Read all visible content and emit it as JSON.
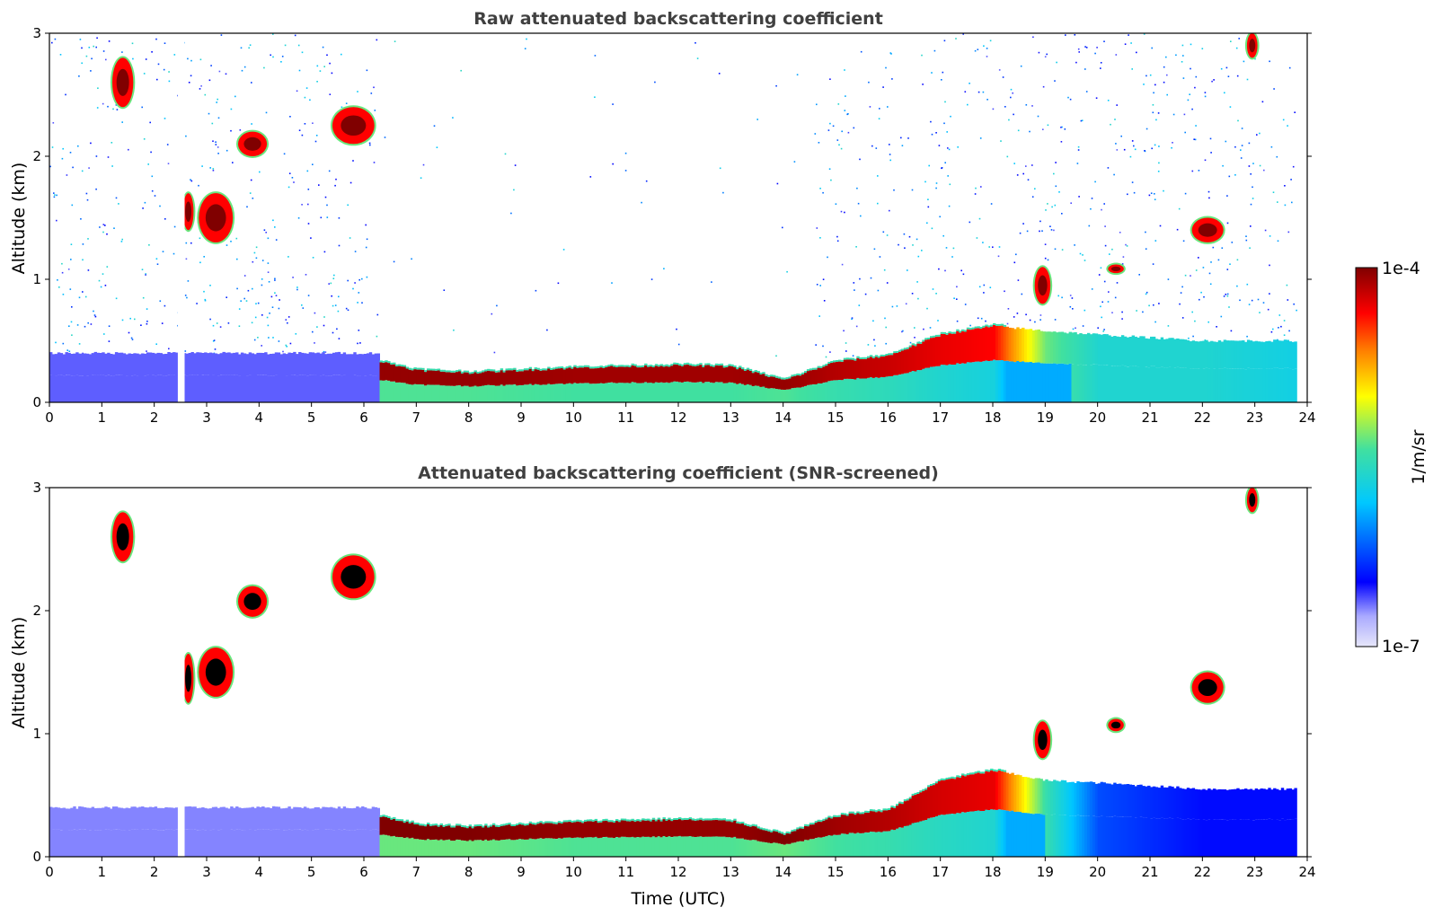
{
  "chart_data": [
    {
      "type": "heatmap",
      "title": "Raw attenuated backscattering coefficient",
      "xlabel": "",
      "ylabel": "Altitude (km)",
      "xlim": [
        0,
        24
      ],
      "ylim": [
        0,
        3
      ],
      "xticks": [
        "0",
        "1",
        "2",
        "3",
        "4",
        "5",
        "6",
        "7",
        "8",
        "9",
        "10",
        "11",
        "12",
        "13",
        "14",
        "15",
        "16",
        "17",
        "18",
        "19",
        "20",
        "21",
        "22",
        "23",
        "24"
      ],
      "yticks": [
        "0",
        "1",
        "2",
        "3"
      ],
      "noise_fill_top_km": 3.0,
      "noise_clear_window_utc": [
        6.25,
        14.6
      ],
      "boundary_layer": [
        {
          "t": 0.0,
          "top": 0.4,
          "level": 0.12
        },
        {
          "t": 6.25,
          "top": 0.4,
          "level": 0.12
        },
        {
          "t": 6.3,
          "top": 0.33,
          "level": 0.98
        },
        {
          "t": 7.0,
          "top": 0.26,
          "level": 0.98
        },
        {
          "t": 8.0,
          "top": 0.24,
          "level": 0.98
        },
        {
          "t": 10.0,
          "top": 0.28,
          "level": 0.97
        },
        {
          "t": 12.0,
          "top": 0.3,
          "level": 0.97
        },
        {
          "t": 13.0,
          "top": 0.29,
          "level": 0.97
        },
        {
          "t": 14.0,
          "top": 0.18,
          "level": 0.98
        },
        {
          "t": 15.0,
          "top": 0.33,
          "level": 0.95
        },
        {
          "t": 16.0,
          "top": 0.38,
          "level": 0.93
        },
        {
          "t": 17.0,
          "top": 0.55,
          "level": 0.9
        },
        {
          "t": 18.0,
          "top": 0.62,
          "level": 0.88
        },
        {
          "t": 19.0,
          "top": 0.58,
          "level": 0.55
        },
        {
          "t": 20.0,
          "top": 0.55,
          "level": 0.45
        },
        {
          "t": 22.0,
          "top": 0.5,
          "level": 0.45
        },
        {
          "t": 23.8,
          "top": 0.5,
          "level": 0.42
        }
      ],
      "gaps_utc": [
        [
          2.45,
          2.58
        ],
        [
          23.82,
          24.0
        ]
      ],
      "clouds": [
        {
          "t0": 1.2,
          "t1": 1.6,
          "z0": 2.4,
          "z1": 2.8
        },
        {
          "t0": 2.55,
          "t1": 2.75,
          "z0": 1.4,
          "z1": 1.7
        },
        {
          "t0": 2.85,
          "t1": 3.5,
          "z0": 1.3,
          "z1": 1.7
        },
        {
          "t0": 3.6,
          "t1": 4.15,
          "z0": 2.0,
          "z1": 2.2
        },
        {
          "t0": 5.4,
          "t1": 6.2,
          "z0": 2.1,
          "z1": 2.4
        },
        {
          "t0": 18.8,
          "t1": 19.1,
          "z0": 0.8,
          "z1": 1.1
        },
        {
          "t0": 20.2,
          "t1": 20.5,
          "z0": 1.05,
          "z1": 1.12
        },
        {
          "t0": 21.8,
          "t1": 22.4,
          "z0": 1.3,
          "z1": 1.5
        },
        {
          "t0": 22.85,
          "t1": 23.05,
          "z0": 2.8,
          "z1": 3.0
        }
      ]
    },
    {
      "type": "heatmap",
      "title": "Attenuated backscattering coefficient (SNR-screened)",
      "xlabel": "Time (UTC)",
      "ylabel": "Altitude (km)",
      "xlim": [
        0,
        24
      ],
      "ylim": [
        0,
        3
      ],
      "xticks": [
        "0",
        "1",
        "2",
        "3",
        "4",
        "5",
        "6",
        "7",
        "8",
        "9",
        "10",
        "11",
        "12",
        "13",
        "14",
        "15",
        "16",
        "17",
        "18",
        "19",
        "20",
        "21",
        "22",
        "23",
        "24"
      ],
      "yticks": [
        "0",
        "1",
        "2",
        "3"
      ],
      "noise_fill_top_km": 0.0,
      "noise_clear_window_utc": [
        0,
        0
      ],
      "boundary_layer": [
        {
          "t": 0.0,
          "top": 0.4,
          "level": 0.1
        },
        {
          "t": 6.25,
          "top": 0.4,
          "level": 0.1
        },
        {
          "t": 6.3,
          "top": 0.33,
          "level": 1.0
        },
        {
          "t": 7.0,
          "top": 0.26,
          "level": 1.0
        },
        {
          "t": 8.0,
          "top": 0.24,
          "level": 1.0
        },
        {
          "t": 10.0,
          "top": 0.28,
          "level": 0.98
        },
        {
          "t": 12.0,
          "top": 0.3,
          "level": 0.98
        },
        {
          "t": 13.0,
          "top": 0.29,
          "level": 0.98
        },
        {
          "t": 14.0,
          "top": 0.18,
          "level": 1.0
        },
        {
          "t": 15.0,
          "top": 0.33,
          "level": 0.97
        },
        {
          "t": 16.0,
          "top": 0.38,
          "level": 0.95
        },
        {
          "t": 17.0,
          "top": 0.62,
          "level": 0.92
        },
        {
          "t": 18.0,
          "top": 0.7,
          "level": 0.9
        },
        {
          "t": 19.0,
          "top": 0.62,
          "level": 0.5
        },
        {
          "t": 20.0,
          "top": 0.6,
          "level": 0.25
        },
        {
          "t": 22.0,
          "top": 0.55,
          "level": 0.18
        },
        {
          "t": 23.8,
          "top": 0.55,
          "level": 0.18
        }
      ],
      "gaps_utc": [
        [
          2.45,
          2.58
        ],
        [
          23.82,
          24.0
        ]
      ],
      "clouds": [
        {
          "t0": 1.2,
          "t1": 1.6,
          "z0": 2.4,
          "z1": 2.8
        },
        {
          "t0": 2.55,
          "t1": 2.75,
          "z0": 1.25,
          "z1": 1.65
        },
        {
          "t0": 2.85,
          "t1": 3.5,
          "z0": 1.3,
          "z1": 1.7
        },
        {
          "t0": 3.6,
          "t1": 4.15,
          "z0": 1.95,
          "z1": 2.2
        },
        {
          "t0": 5.4,
          "t1": 6.2,
          "z0": 2.1,
          "z1": 2.45
        },
        {
          "t0": 18.8,
          "t1": 19.1,
          "z0": 0.8,
          "z1": 1.1
        },
        {
          "t0": 20.2,
          "t1": 20.5,
          "z0": 1.02,
          "z1": 1.12
        },
        {
          "t0": 21.8,
          "t1": 22.4,
          "z0": 1.25,
          "z1": 1.5
        },
        {
          "t0": 22.85,
          "t1": 23.05,
          "z0": 2.8,
          "z1": 3.0
        }
      ]
    }
  ],
  "colorbar": {
    "label": "1/m/sr",
    "max_label": "1e-4",
    "min_label": "1e-7",
    "colors": [
      "#e6e6fa",
      "#0000ff",
      "#00c8ff",
      "#40e0a0",
      "#ffff00",
      "#ff8000",
      "#ff0000",
      "#800000"
    ]
  }
}
